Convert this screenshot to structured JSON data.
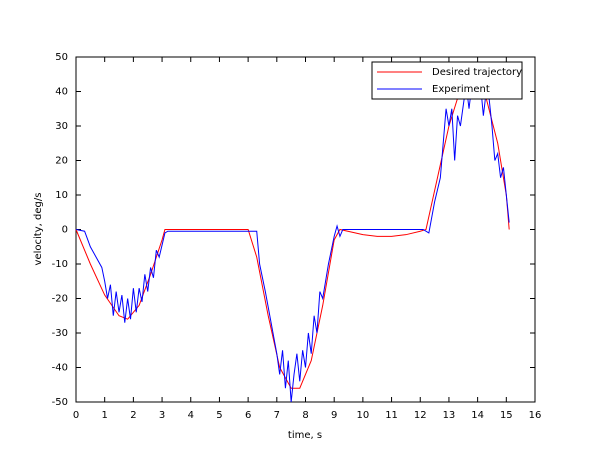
{
  "chart_data": {
    "type": "line",
    "xlabel": "time, s",
    "ylabel": "velocity, deg/s",
    "xlim": [
      0,
      16
    ],
    "xticks": [
      0,
      1,
      2,
      3,
      4,
      5,
      6,
      7,
      8,
      9,
      10,
      11,
      12,
      13,
      14,
      15,
      16
    ],
    "ylim": [
      -50,
      50
    ],
    "yticks": [
      -50,
      -40,
      -30,
      -20,
      -10,
      0,
      10,
      20,
      30,
      40,
      50
    ],
    "legend": "upper right",
    "grid": false,
    "series": [
      {
        "name": "Desired trajectory",
        "color": "#ff0000",
        "x": [
          0,
          0.5,
          1,
          1.5,
          1.8,
          2.2,
          2.6,
          3.0,
          3.1,
          6.0,
          6.3,
          6.7,
          7.1,
          7.5,
          7.8,
          8.2,
          8.6,
          9.0,
          9.2,
          10,
          10.5,
          11,
          11.5,
          12,
          12.2,
          12.6,
          13,
          13.3,
          13.5,
          14,
          14.3,
          14.7,
          15,
          15.1
        ],
        "values": [
          0,
          -10,
          -19,
          -25,
          -26,
          -22,
          -13,
          -3,
          0,
          0,
          -8,
          -25,
          -40,
          -46,
          -46,
          -38,
          -22,
          -3,
          0,
          -1.5,
          -2,
          -2,
          -1.5,
          -0.5,
          0,
          15,
          30,
          38,
          40,
          40,
          38,
          25,
          10,
          0
        ]
      },
      {
        "name": "Experiment",
        "color": "#0000ff",
        "x": [
          0,
          0.3,
          0.5,
          0.7,
          0.9,
          1.0,
          1.1,
          1.2,
          1.3,
          1.4,
          1.5,
          1.6,
          1.7,
          1.8,
          1.9,
          2.0,
          2.1,
          2.2,
          2.3,
          2.4,
          2.5,
          2.6,
          2.7,
          2.8,
          2.9,
          3.1,
          3.2,
          6.3,
          6.4,
          6.6,
          6.8,
          7.0,
          7.1,
          7.2,
          7.3,
          7.4,
          7.5,
          7.6,
          7.7,
          7.8,
          7.9,
          8.0,
          8.1,
          8.2,
          8.3,
          8.4,
          8.5,
          8.6,
          8.8,
          9.0,
          9.1,
          9.2,
          9.3,
          12.1,
          12.3,
          12.5,
          12.7,
          12.9,
          13.0,
          13.1,
          13.2,
          13.3,
          13.4,
          13.6,
          13.7,
          13.8,
          14.0,
          14.1,
          14.2,
          14.3,
          14.4,
          14.5,
          14.6,
          14.7,
          14.8,
          14.9,
          15.0,
          15.1
        ],
        "values": [
          0,
          -0.5,
          -5,
          -8,
          -11,
          -15,
          -20,
          -16,
          -25,
          -18,
          -24,
          -19,
          -27,
          -20,
          -26,
          -17,
          -24,
          -17,
          -21,
          -13,
          -18,
          -11,
          -14,
          -6,
          -8,
          -1,
          -0.5,
          -0.5,
          -10,
          -18,
          -27,
          -36,
          -42,
          -35,
          -46,
          -38,
          -50,
          -42,
          -36,
          -44,
          -35,
          -40,
          -30,
          -36,
          -25,
          -30,
          -18,
          -20,
          -10,
          -2,
          1,
          -2,
          0,
          0,
          -1,
          8,
          15,
          35,
          30,
          35,
          20,
          33,
          30,
          42,
          35,
          42,
          40,
          42,
          33,
          40,
          38,
          30,
          20,
          22,
          15,
          18,
          10,
          2
        ]
      }
    ]
  }
}
